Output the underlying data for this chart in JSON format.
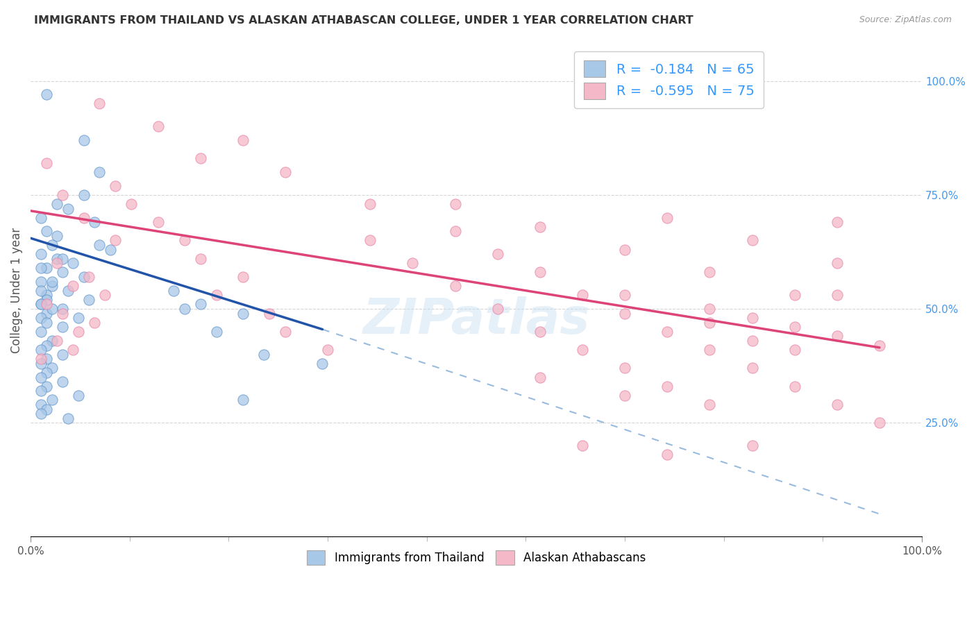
{
  "title": "IMMIGRANTS FROM THAILAND VS ALASKAN ATHABASCAN COLLEGE, UNDER 1 YEAR CORRELATION CHART",
  "source": "Source: ZipAtlas.com",
  "ylabel": "College, Under 1 year",
  "legend_label1": "Immigrants from Thailand",
  "legend_label2": "Alaskan Athabascans",
  "R1": "-0.184",
  "N1": "65",
  "R2": "-0.595",
  "N2": "75",
  "color_blue": "#a8c8e8",
  "color_pink": "#f4b8c8",
  "color_blue_edge": "#6699cc",
  "color_pink_edge": "#e888aa",
  "color_line_blue": "#2255aa",
  "color_line_pink": "#dd4477",
  "color_line_dashed": "#99bbdd",
  "background": "#ffffff",
  "watermark": "ZIPatlas",
  "blue_dots": [
    [
      0.003,
      0.97
    ],
    [
      0.01,
      0.87
    ],
    [
      0.013,
      0.8
    ],
    [
      0.01,
      0.75
    ],
    [
      0.007,
      0.72
    ],
    [
      0.012,
      0.69
    ],
    [
      0.005,
      0.66
    ],
    [
      0.004,
      0.64
    ],
    [
      0.015,
      0.63
    ],
    [
      0.002,
      0.62
    ],
    [
      0.005,
      0.61
    ],
    [
      0.008,
      0.6
    ],
    [
      0.003,
      0.59
    ],
    [
      0.006,
      0.58
    ],
    [
      0.01,
      0.57
    ],
    [
      0.002,
      0.56
    ],
    [
      0.004,
      0.55
    ],
    [
      0.007,
      0.54
    ],
    [
      0.003,
      0.53
    ],
    [
      0.011,
      0.52
    ],
    [
      0.002,
      0.51
    ],
    [
      0.006,
      0.5
    ],
    [
      0.003,
      0.49
    ],
    [
      0.009,
      0.48
    ],
    [
      0.005,
      0.73
    ],
    [
      0.002,
      0.7
    ],
    [
      0.003,
      0.67
    ],
    [
      0.013,
      0.64
    ],
    [
      0.006,
      0.61
    ],
    [
      0.002,
      0.59
    ],
    [
      0.004,
      0.56
    ],
    [
      0.002,
      0.54
    ],
    [
      0.003,
      0.52
    ],
    [
      0.002,
      0.51
    ],
    [
      0.004,
      0.5
    ],
    [
      0.002,
      0.48
    ],
    [
      0.003,
      0.47
    ],
    [
      0.006,
      0.46
    ],
    [
      0.002,
      0.45
    ],
    [
      0.004,
      0.43
    ],
    [
      0.003,
      0.42
    ],
    [
      0.002,
      0.41
    ],
    [
      0.006,
      0.4
    ],
    [
      0.003,
      0.39
    ],
    [
      0.002,
      0.38
    ],
    [
      0.004,
      0.37
    ],
    [
      0.003,
      0.36
    ],
    [
      0.002,
      0.35
    ],
    [
      0.006,
      0.34
    ],
    [
      0.003,
      0.33
    ],
    [
      0.002,
      0.32
    ],
    [
      0.009,
      0.31
    ],
    [
      0.004,
      0.3
    ],
    [
      0.002,
      0.29
    ],
    [
      0.003,
      0.28
    ],
    [
      0.002,
      0.27
    ],
    [
      0.007,
      0.26
    ],
    [
      0.027,
      0.54
    ],
    [
      0.029,
      0.5
    ],
    [
      0.032,
      0.51
    ],
    [
      0.035,
      0.45
    ],
    [
      0.04,
      0.49
    ],
    [
      0.044,
      0.4
    ],
    [
      0.055,
      0.38
    ],
    [
      0.04,
      0.3
    ]
  ],
  "pink_dots": [
    [
      0.003,
      0.82
    ],
    [
      0.006,
      0.75
    ],
    [
      0.01,
      0.7
    ],
    [
      0.016,
      0.65
    ],
    [
      0.005,
      0.6
    ],
    [
      0.011,
      0.57
    ],
    [
      0.008,
      0.55
    ],
    [
      0.014,
      0.53
    ],
    [
      0.003,
      0.51
    ],
    [
      0.006,
      0.49
    ],
    [
      0.012,
      0.47
    ],
    [
      0.009,
      0.45
    ],
    [
      0.005,
      0.43
    ],
    [
      0.008,
      0.41
    ],
    [
      0.002,
      0.39
    ],
    [
      0.016,
      0.77
    ],
    [
      0.019,
      0.73
    ],
    [
      0.024,
      0.69
    ],
    [
      0.029,
      0.65
    ],
    [
      0.032,
      0.61
    ],
    [
      0.04,
      0.57
    ],
    [
      0.035,
      0.53
    ],
    [
      0.045,
      0.49
    ],
    [
      0.048,
      0.45
    ],
    [
      0.056,
      0.41
    ],
    [
      0.024,
      0.9
    ],
    [
      0.032,
      0.83
    ],
    [
      0.04,
      0.87
    ],
    [
      0.048,
      0.8
    ],
    [
      0.064,
      0.73
    ],
    [
      0.013,
      0.95
    ],
    [
      0.064,
      0.65
    ],
    [
      0.072,
      0.6
    ],
    [
      0.08,
      0.55
    ],
    [
      0.088,
      0.5
    ],
    [
      0.096,
      0.45
    ],
    [
      0.104,
      0.41
    ],
    [
      0.112,
      0.37
    ],
    [
      0.12,
      0.33
    ],
    [
      0.128,
      0.29
    ],
    [
      0.08,
      0.67
    ],
    [
      0.088,
      0.62
    ],
    [
      0.096,
      0.58
    ],
    [
      0.104,
      0.53
    ],
    [
      0.112,
      0.49
    ],
    [
      0.12,
      0.45
    ],
    [
      0.128,
      0.41
    ],
    [
      0.136,
      0.37
    ],
    [
      0.144,
      0.33
    ],
    [
      0.152,
      0.29
    ],
    [
      0.16,
      0.25
    ],
    [
      0.08,
      0.73
    ],
    [
      0.096,
      0.68
    ],
    [
      0.112,
      0.63
    ],
    [
      0.128,
      0.58
    ],
    [
      0.144,
      0.53
    ],
    [
      0.12,
      0.7
    ],
    [
      0.136,
      0.65
    ],
    [
      0.152,
      0.6
    ],
    [
      0.112,
      0.31
    ],
    [
      0.128,
      0.47
    ],
    [
      0.136,
      0.43
    ],
    [
      0.144,
      0.41
    ],
    [
      0.152,
      0.69
    ],
    [
      0.096,
      0.35
    ],
    [
      0.104,
      0.2
    ],
    [
      0.12,
      0.18
    ],
    [
      0.136,
      0.2
    ],
    [
      0.112,
      0.53
    ],
    [
      0.128,
      0.5
    ],
    [
      0.136,
      0.48
    ],
    [
      0.144,
      0.46
    ],
    [
      0.152,
      0.44
    ],
    [
      0.16,
      0.42
    ],
    [
      0.152,
      0.53
    ]
  ],
  "blue_trend": [
    0.0,
    0.655,
    0.055,
    0.455
  ],
  "pink_trend": [
    0.0,
    0.715,
    0.16,
    0.415
  ],
  "dashed_trend": [
    0.055,
    0.455,
    0.16,
    0.05
  ],
  "xlim": [
    0,
    0.168
  ],
  "ylim": [
    0,
    1.08
  ],
  "right_yticks": [
    0.25,
    0.5,
    0.75,
    1.0
  ],
  "right_yticklabels": [
    "25.0%",
    "50.0%",
    "75.0%",
    "100.0%"
  ],
  "grid_yticks": [
    0.25,
    0.5,
    0.75,
    1.0
  ],
  "xtick_positions": [
    0.0,
    0.168
  ],
  "xtick_labels": [
    "0.0%",
    "100.0%"
  ]
}
